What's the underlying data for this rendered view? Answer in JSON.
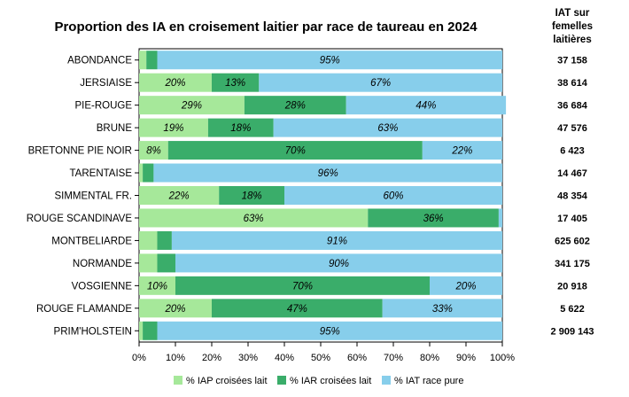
{
  "chart_data": {
    "type": "bar",
    "orientation": "horizontal",
    "stacked": true,
    "title": "Proportion des IA en croisement laitier par race de taureau en 2024",
    "categories": [
      "ABONDANCE",
      "JERSIAISE",
      "PIE-ROUGE",
      "BRUNE",
      "BRETONNE PIE NOIR",
      "TARENTAISE",
      "SIMMENTAL FR.",
      "ROUGE SCANDINAVE",
      "MONTBELIARDE",
      "NORMANDE",
      "VOSGIENNE",
      "ROUGE FLAMANDE",
      "PRIM'HOLSTEIN"
    ],
    "series": [
      {
        "name": "% IAP croisées lait",
        "color": "#a6e89a",
        "values": [
          2,
          20,
          29,
          19,
          8,
          1,
          22,
          63,
          5,
          5,
          10,
          20,
          1
        ],
        "labels": [
          "",
          "20%",
          "29%",
          "19%",
          "8%",
          "",
          "22%",
          "63%",
          "",
          "",
          "10%",
          "20%",
          ""
        ]
      },
      {
        "name": "% IAR croisées lait",
        "color": "#3aad6a",
        "values": [
          3,
          13,
          28,
          18,
          70,
          3,
          18,
          36,
          4,
          5,
          70,
          47,
          4
        ],
        "labels": [
          "",
          "13%",
          "28%",
          "18%",
          "70%",
          "",
          "18%",
          "36%",
          "",
          "",
          "70%",
          "47%",
          ""
        ]
      },
      {
        "name": "% IAT race pure",
        "color": "#87ceeb",
        "values": [
          95,
          67,
          44,
          63,
          22,
          96,
          60,
          1,
          91,
          90,
          20,
          33,
          95
        ],
        "labels": [
          "95%",
          "67%",
          "44%",
          "63%",
          "22%",
          "96%",
          "60%",
          "",
          "91%",
          "90%",
          "20%",
          "33%",
          "95%"
        ]
      }
    ],
    "xlim": [
      0,
      100
    ],
    "xticks": [
      "0%",
      "10%",
      "20%",
      "30%",
      "40%",
      "50%",
      "60%",
      "70%",
      "80%",
      "90%",
      "100%"
    ],
    "legend_position": "bottom",
    "side_column": {
      "header": [
        "IAT sur",
        "femelles",
        "laitières"
      ],
      "values": [
        "37 158",
        "38 614",
        "36 684",
        "47 576",
        "6 423",
        "14 467",
        "48 354",
        "17 405",
        "625 602",
        "341 175",
        "20 918",
        "5 622",
        "2 909 143"
      ]
    }
  }
}
